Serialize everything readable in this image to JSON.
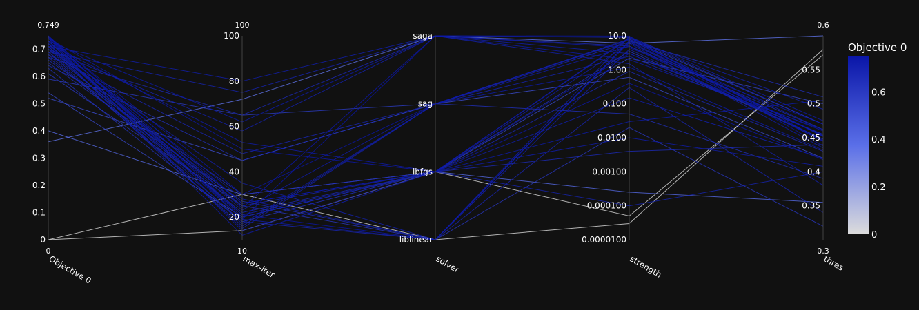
{
  "chart_data": {
    "type": "parallel_coordinates",
    "colorscale": [
      "#dcdcdc",
      "#5a6fe8",
      "#0a16a8"
    ],
    "colorbar": {
      "title": "Objective 0",
      "ticks": [
        "0",
        "0.2",
        "0.4",
        "0.6"
      ],
      "min": 0,
      "max": 0.749
    },
    "axes": [
      {
        "label": "Objective 0",
        "scale": "linear",
        "range": [
          0,
          0.749
        ],
        "range_labels": [
          "0",
          "0.749"
        ],
        "ticks": [
          "0",
          "0.1",
          "0.2",
          "0.3",
          "0.4",
          "0.5",
          "0.6",
          "0.7"
        ],
        "tick_values": [
          0,
          0.1,
          0.2,
          0.3,
          0.4,
          0.5,
          0.6,
          0.7
        ]
      },
      {
        "label": "max-iter",
        "scale": "linear",
        "range": [
          10,
          100
        ],
        "range_labels": [
          "10",
          "100"
        ],
        "ticks": [
          "20",
          "40",
          "60",
          "80",
          "100"
        ],
        "tick_values": [
          20,
          40,
          60,
          80,
          100
        ]
      },
      {
        "label": "solver",
        "scale": "categorical",
        "categories": [
          "liblinear",
          "lbfgs",
          "sag",
          "saga"
        ]
      },
      {
        "label": "strength",
        "scale": "log",
        "range": [
          1e-05,
          10
        ],
        "ticks": [
          "0.0000100",
          "0.000100",
          "0.00100",
          "0.0100",
          "0.100",
          "1.00",
          "10.0"
        ],
        "tick_values": [
          1e-05,
          0.0001,
          0.001,
          0.01,
          0.1,
          1,
          10
        ]
      },
      {
        "label": "thres",
        "scale": "linear",
        "range": [
          0.3,
          0.6
        ],
        "range_labels": [
          "0.3",
          "0.6"
        ],
        "ticks": [
          "0.35",
          "0.4",
          "0.45",
          "0.5",
          "0.55"
        ],
        "tick_values": [
          0.35,
          0.4,
          0.45,
          0.5,
          0.55
        ]
      }
    ],
    "lines": [
      [
        0.0,
        30.0,
        "liblinear",
        3e-05,
        0.58
      ],
      [
        0.0,
        14.0,
        "lbfgs",
        5e-05,
        0.572
      ],
      [
        0.36,
        72.0,
        "saga",
        6.0,
        0.6
      ],
      [
        0.4,
        30.0,
        "lbfgs",
        0.00025,
        0.355
      ],
      [
        0.52,
        45.0,
        "sag",
        0.6,
        0.42
      ],
      [
        0.54,
        20.0,
        "lbfgs",
        2.2,
        0.5
      ],
      [
        0.59,
        65.0,
        "sag",
        8.0,
        0.47
      ],
      [
        0.61,
        25.0,
        "liblinear",
        0.02,
        0.32
      ],
      [
        0.63,
        18.0,
        "lbfgs",
        3.5,
        0.448
      ],
      [
        0.64,
        45.0,
        "sag",
        0.05,
        0.39
      ],
      [
        0.65,
        27.0,
        "liblinear",
        7.0,
        0.51
      ],
      [
        0.66,
        30.0,
        "lbfgs",
        0.004,
        0.44
      ],
      [
        0.67,
        65.0,
        "saga",
        5.0,
        0.462
      ],
      [
        0.67,
        22.0,
        "lbfgs",
        0.9,
        0.43
      ],
      [
        0.68,
        48.0,
        "sag",
        6.5,
        0.453
      ],
      [
        0.68,
        18.0,
        "liblinear",
        0.3,
        0.34
      ],
      [
        0.69,
        75.0,
        "saga",
        9.0,
        0.47
      ],
      [
        0.69,
        25.0,
        "lbfgs",
        0.0001,
        0.4
      ],
      [
        0.69,
        16.0,
        "sag",
        2.5,
        0.455
      ],
      [
        0.7,
        58.0,
        "saga",
        1.5,
        0.38
      ],
      [
        0.7,
        21.0,
        "lbfgs",
        8.5,
        0.492
      ],
      [
        0.7,
        35.0,
        "liblinear",
        4.0,
        0.448
      ],
      [
        0.71,
        26.0,
        "lbfgs",
        0.15,
        0.42
      ],
      [
        0.71,
        15.0,
        "sag",
        7.5,
        0.462
      ],
      [
        0.71,
        80.0,
        "saga",
        3.0,
        0.455
      ],
      [
        0.72,
        19.0,
        "liblinear",
        9.5,
        0.475
      ],
      [
        0.72,
        53.0,
        "lbfgs",
        0.01,
        0.408
      ],
      [
        0.72,
        23.0,
        "sag",
        5.0,
        0.445
      ],
      [
        0.72,
        12.0,
        "lbfgs",
        6.0,
        0.435
      ],
      [
        0.73,
        62.0,
        "saga",
        2.0,
        0.462
      ],
      [
        0.73,
        20.0,
        "lbfgs",
        0.03,
        0.505
      ],
      [
        0.73,
        28.0,
        "liblinear",
        7.0,
        0.452
      ],
      [
        0.73,
        17.0,
        "sag",
        1.2,
        0.432
      ],
      [
        0.74,
        50.0,
        "lbfgs",
        9.0,
        0.446
      ],
      [
        0.74,
        24.0,
        "saga",
        4.5,
        0.47
      ],
      [
        0.74,
        14.0,
        "lbfgs",
        0.4,
        0.418
      ],
      [
        0.745,
        30.0,
        "sag",
        8.0,
        0.452
      ],
      [
        0.745,
        21.0,
        "liblinear",
        6.5,
        0.445
      ],
      [
        0.749,
        26.0,
        "lbfgs",
        3.0,
        0.46
      ],
      [
        0.749,
        19.0,
        "saga",
        9.8,
        0.438
      ]
    ]
  }
}
